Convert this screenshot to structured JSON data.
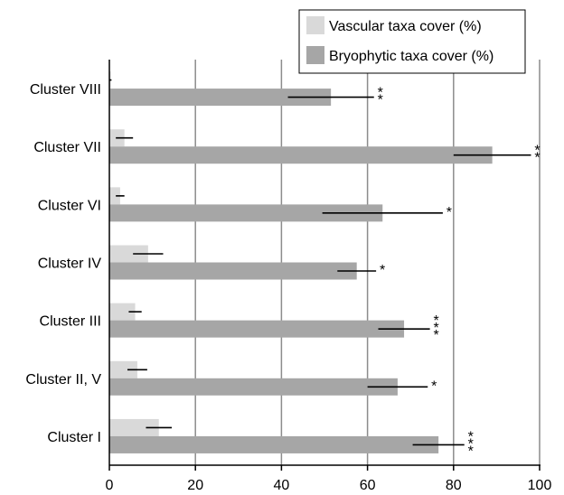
{
  "chart_data": {
    "type": "bar",
    "orientation": "horizontal",
    "categories": [
      "Cluster VIII",
      "Cluster VII",
      "Cluster VI",
      "Cluster IV",
      "Cluster III",
      "Cluster II, V",
      "Cluster I"
    ],
    "series": [
      {
        "name": "Vascular taxa cover (%)",
        "color": "#d9d9d9",
        "values": [
          0.3,
          3.5,
          2.5,
          9,
          6,
          6.5,
          11.5
        ],
        "error": [
          0.2,
          2,
          1,
          3.5,
          1.5,
          2.3,
          3
        ]
      },
      {
        "name": "Bryophytic taxa cover (%)",
        "color": "#a6a6a6",
        "values": [
          51.5,
          89,
          63.5,
          57.5,
          68.5,
          67,
          76.5
        ],
        "error": [
          10,
          9,
          14,
          4.5,
          6,
          7,
          6
        ]
      }
    ],
    "significance": [
      "**",
      "**",
      "*",
      "*",
      "***",
      "*",
      "***"
    ],
    "xlim": [
      0,
      100
    ],
    "xticks": [
      "0",
      "20",
      "40",
      "60",
      "80",
      "100"
    ],
    "grid": true,
    "legend_position": "top-right",
    "title": "",
    "xlabel": "",
    "ylabel": ""
  }
}
